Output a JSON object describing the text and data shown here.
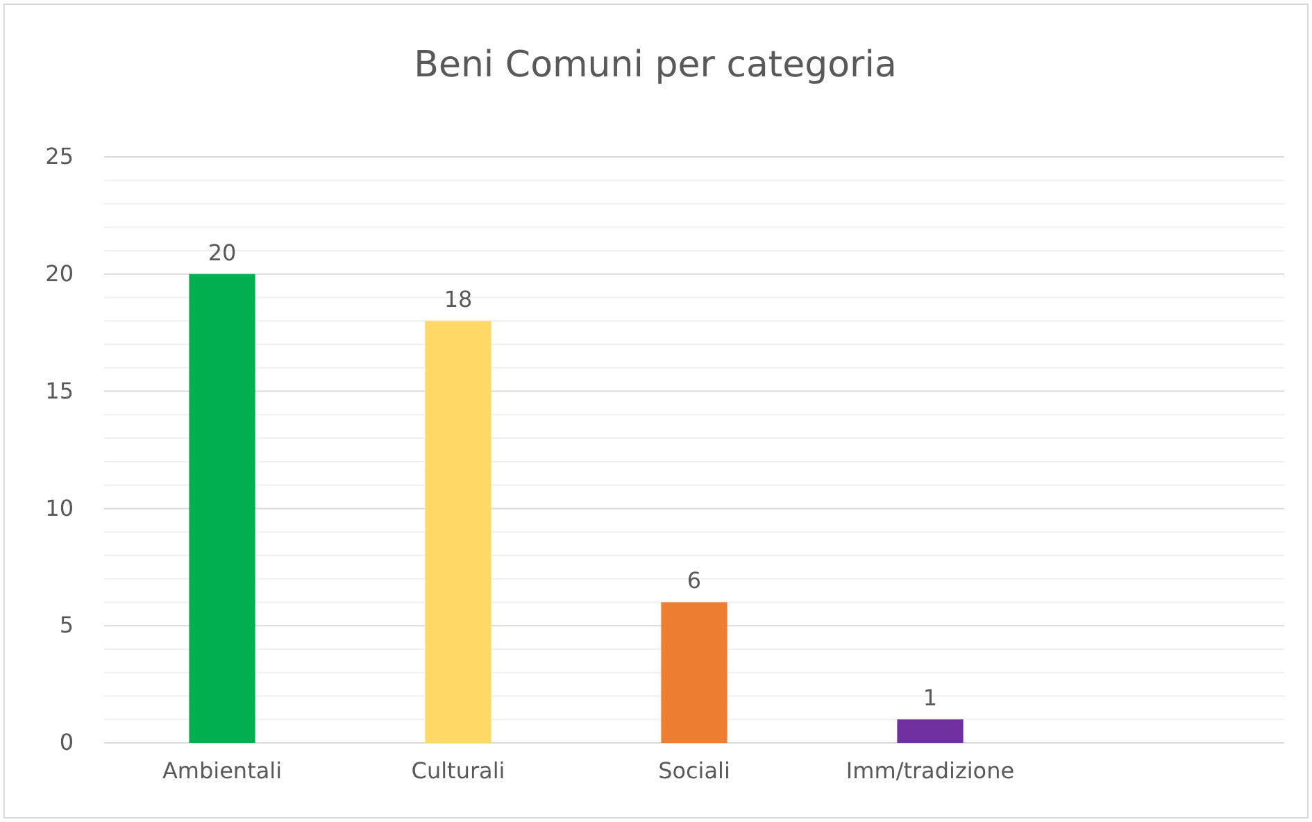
{
  "chart_data": {
    "type": "bar",
    "title": "Beni Comuni per categoria",
    "categories": [
      "Ambientali",
      "Culturali",
      "Sociali",
      "Imm/tradizione",
      null
    ],
    "values": [
      20,
      18,
      6,
      1,
      null
    ],
    "colors": [
      "#00b050",
      "#ffd966",
      "#ed7d31",
      "#7030a0",
      null
    ],
    "ylim": [
      0,
      25
    ],
    "yticks": [
      0,
      {
        "value": 1,
        "label": null
      },
      {
        "value": 2,
        "label": null
      },
      {
        "value": 3,
        "label": null
      },
      {
        "value": 4,
        "label": null
      },
      5,
      {
        "value": 6,
        "label": null
      },
      {
        "value": 7,
        "label": null
      },
      {
        "value": 8,
        "label": null
      },
      {
        "value": 9,
        "label": null
      },
      10,
      {
        "value": 11,
        "label": null
      },
      {
        "value": 12,
        "label": null
      },
      {
        "value": 13,
        "label": null
      },
      {
        "value": 14,
        "label": null
      },
      15,
      {
        "value": 16,
        "label": null
      },
      {
        "value": 17,
        "label": null
      },
      {
        "value": 18,
        "label": null
      },
      {
        "value": 19,
        "label": null
      },
      20,
      {
        "value": 21,
        "label": null
      },
      {
        "value": 22,
        "label": null
      },
      {
        "value": 23,
        "label": null
      },
      {
        "value": 24,
        "label": null
      },
      25
    ],
    "grid": "y",
    "data_labels": true
  }
}
